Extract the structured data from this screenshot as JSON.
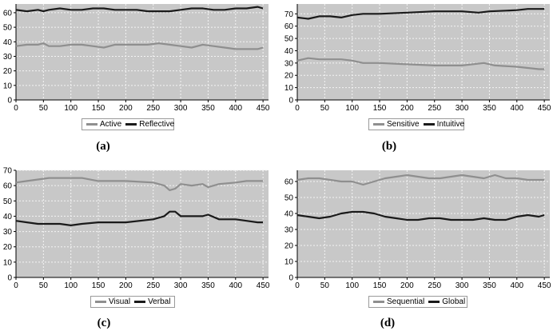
{
  "chart_data": [
    {
      "type": "line",
      "caption": "(a)",
      "x_ticks": [
        0,
        50,
        100,
        150,
        200,
        250,
        300,
        350,
        400,
        450
      ],
      "y_ticks": [
        0,
        10,
        20,
        30,
        40,
        50,
        60
      ],
      "xlim": [
        0,
        460
      ],
      "ylim": [
        0,
        66
      ],
      "grid": true,
      "legend_position": "bottom-center",
      "series": [
        {
          "name": "Active",
          "color": "#8f8f8f",
          "x": [
            0,
            20,
            40,
            50,
            60,
            80,
            100,
            120,
            140,
            160,
            180,
            200,
            220,
            240,
            260,
            280,
            300,
            320,
            340,
            360,
            380,
            400,
            420,
            440,
            450
          ],
          "y": [
            37,
            38,
            38,
            39,
            37,
            37,
            38,
            38,
            37,
            36,
            38,
            38,
            38,
            38,
            39,
            38,
            37,
            36,
            38,
            37,
            36,
            35,
            35,
            35,
            36
          ]
        },
        {
          "name": "Reflective",
          "color": "#1a1a1a",
          "x": [
            0,
            20,
            40,
            50,
            60,
            80,
            100,
            120,
            140,
            160,
            180,
            200,
            220,
            240,
            260,
            280,
            300,
            320,
            340,
            360,
            380,
            400,
            420,
            440,
            450
          ],
          "y": [
            62,
            61,
            62,
            61,
            62,
            63,
            62,
            62,
            63,
            63,
            62,
            62,
            62,
            61,
            61,
            61,
            62,
            63,
            63,
            62,
            62,
            63,
            63,
            64,
            63
          ]
        }
      ]
    },
    {
      "type": "line",
      "caption": "(b)",
      "x_ticks": [
        0,
        50,
        100,
        150,
        200,
        250,
        300,
        350,
        400,
        450
      ],
      "y_ticks": [
        0,
        10,
        20,
        30,
        40,
        50,
        60,
        70
      ],
      "xlim": [
        0,
        460
      ],
      "ylim": [
        0,
        78
      ],
      "grid": true,
      "legend_position": "bottom-center",
      "series": [
        {
          "name": "Sensitive",
          "color": "#8f8f8f",
          "x": [
            0,
            20,
            40,
            60,
            80,
            100,
            120,
            150,
            200,
            250,
            300,
            340,
            360,
            400,
            420,
            440,
            450
          ],
          "y": [
            32,
            34,
            33,
            33,
            33,
            32,
            30,
            30,
            29,
            28,
            28,
            30,
            28,
            27,
            26,
            25,
            25
          ]
        },
        {
          "name": "Intuitive",
          "color": "#1a1a1a",
          "x": [
            0,
            20,
            40,
            60,
            80,
            100,
            120,
            150,
            200,
            250,
            300,
            330,
            350,
            400,
            420,
            440,
            450
          ],
          "y": [
            67,
            66,
            68,
            68,
            67,
            69,
            70,
            70,
            71,
            72,
            72,
            71,
            72,
            73,
            74,
            74,
            74
          ]
        }
      ]
    },
    {
      "type": "line",
      "caption": "(c)",
      "x_ticks": [
        0,
        50,
        100,
        150,
        200,
        250,
        300,
        350,
        400,
        450
      ],
      "y_ticks": [
        0,
        10,
        20,
        30,
        40,
        50,
        60,
        70
      ],
      "xlim": [
        0,
        460
      ],
      "ylim": [
        0,
        70
      ],
      "grid": true,
      "legend_position": "bottom-center",
      "series": [
        {
          "name": "Visual",
          "color": "#8f8f8f",
          "x": [
            0,
            20,
            40,
            60,
            80,
            100,
            120,
            150,
            200,
            250,
            270,
            280,
            290,
            300,
            320,
            340,
            350,
            370,
            400,
            420,
            440,
            450
          ],
          "y": [
            62,
            63,
            64,
            65,
            65,
            65,
            65,
            63,
            63,
            62,
            60,
            57,
            58,
            61,
            60,
            61,
            59,
            61,
            62,
            63,
            63,
            63
          ]
        },
        {
          "name": "Verbal",
          "color": "#1a1a1a",
          "x": [
            0,
            20,
            40,
            60,
            80,
            100,
            120,
            150,
            200,
            250,
            270,
            280,
            290,
            300,
            320,
            340,
            350,
            370,
            400,
            420,
            440,
            450
          ],
          "y": [
            37,
            36,
            35,
            35,
            35,
            34,
            35,
            36,
            36,
            38,
            40,
            43,
            43,
            40,
            40,
            40,
            41,
            38,
            38,
            37,
            36,
            36
          ]
        }
      ]
    },
    {
      "type": "line",
      "caption": "(d)",
      "x_ticks": [
        0,
        50,
        100,
        150,
        200,
        250,
        300,
        350,
        400,
        450
      ],
      "y_ticks": [
        0,
        10,
        20,
        30,
        40,
        50,
        60
      ],
      "xlim": [
        0,
        460
      ],
      "ylim": [
        0,
        67
      ],
      "grid": true,
      "legend_position": "bottom-center",
      "series": [
        {
          "name": "Sequential",
          "color": "#8f8f8f",
          "x": [
            0,
            20,
            40,
            60,
            80,
            100,
            120,
            140,
            160,
            180,
            200,
            220,
            240,
            260,
            280,
            300,
            320,
            340,
            360,
            380,
            400,
            420,
            440,
            450
          ],
          "y": [
            61,
            62,
            62,
            61,
            60,
            60,
            58,
            60,
            62,
            63,
            64,
            63,
            62,
            62,
            63,
            64,
            63,
            62,
            64,
            62,
            62,
            61,
            61,
            61
          ]
        },
        {
          "name": "Global",
          "color": "#1a1a1a",
          "x": [
            0,
            20,
            40,
            60,
            80,
            100,
            120,
            140,
            160,
            180,
            200,
            220,
            240,
            260,
            280,
            300,
            320,
            340,
            360,
            380,
            400,
            420,
            440,
            450
          ],
          "y": [
            39,
            38,
            37,
            38,
            40,
            41,
            41,
            40,
            38,
            37,
            36,
            36,
            37,
            37,
            36,
            36,
            36,
            37,
            36,
            36,
            38,
            39,
            38,
            39
          ]
        }
      ]
    }
  ]
}
